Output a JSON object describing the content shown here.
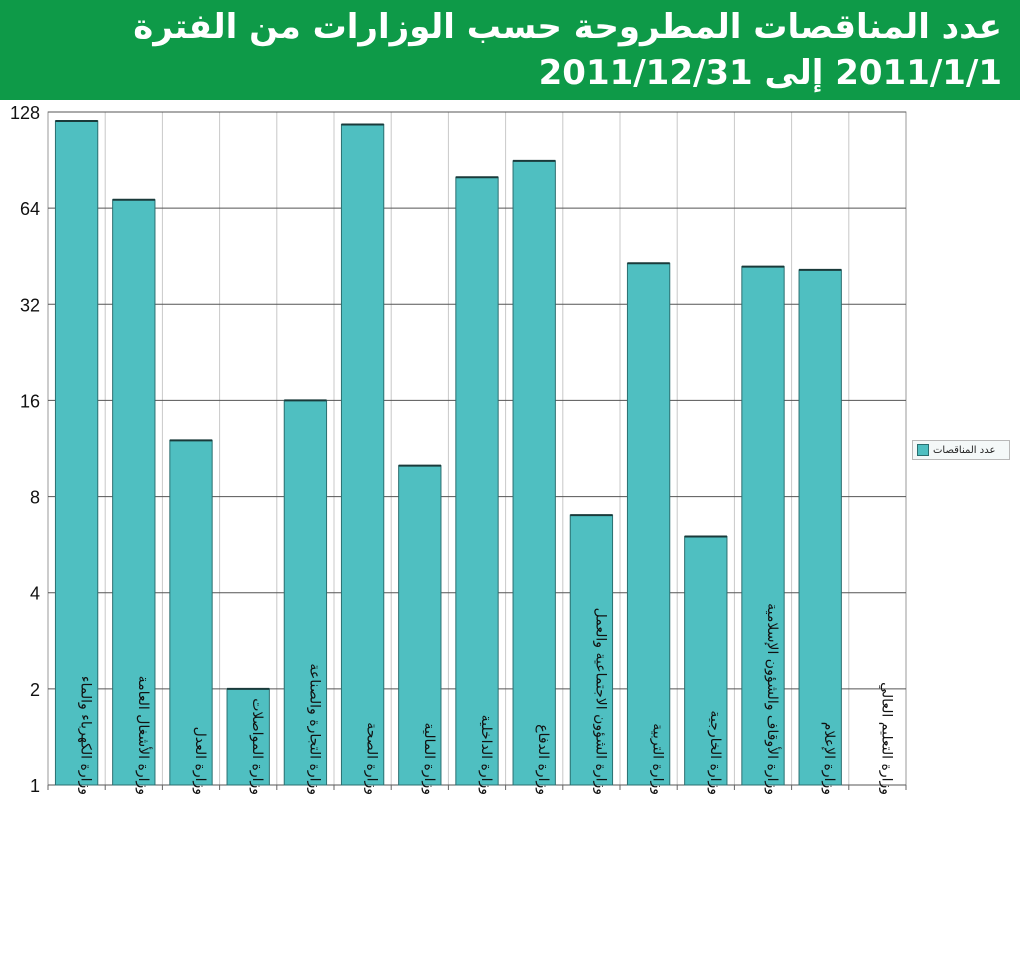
{
  "header": {
    "title_line1": "عدد المناقصات المطروحة حسب الوزارات من الفترة",
    "title_line2": "2011/1/1 إلى 2011/12/31"
  },
  "colors": {
    "header_bg": "#0e9a48",
    "bar_fill": "#4fbfc1",
    "bar_stroke": "#2b6f70",
    "grid": "#555555"
  },
  "chart_data": {
    "type": "bar",
    "title": "عدد المناقصات المطروحة حسب الوزارات من الفترة 2011/1/1 إلى 2011/12/31",
    "yscale": "log2",
    "ylim": [
      1,
      128
    ],
    "yticks": [
      1,
      2,
      4,
      8,
      16,
      32,
      64,
      128
    ],
    "grid": true,
    "legend_position": "right",
    "categories": [
      "وزارة الكهرباء والماء",
      "وزارة الأشغال العامة",
      "وزارة العدل",
      "وزارة المواصلات",
      "وزارة التجارة والصناعة",
      "وزارة الصحة",
      "وزارة المالية",
      "وزارة الداخلية",
      "وزارة الدفاع",
      "وزارة الشؤون الاجتماعية والعمل",
      "وزارة التربية",
      "وزارة الخارجية",
      "وزارة الأوقاف والشؤون الإسلامية",
      "وزارة الإعلام",
      "وزارة التعليم العالي"
    ],
    "series": [
      {
        "name": "عدد المناقصات",
        "values": [
          120,
          68,
          12,
          2,
          16,
          117,
          10,
          80,
          90,
          7,
          43,
          6,
          42,
          41,
          0
        ]
      }
    ]
  }
}
